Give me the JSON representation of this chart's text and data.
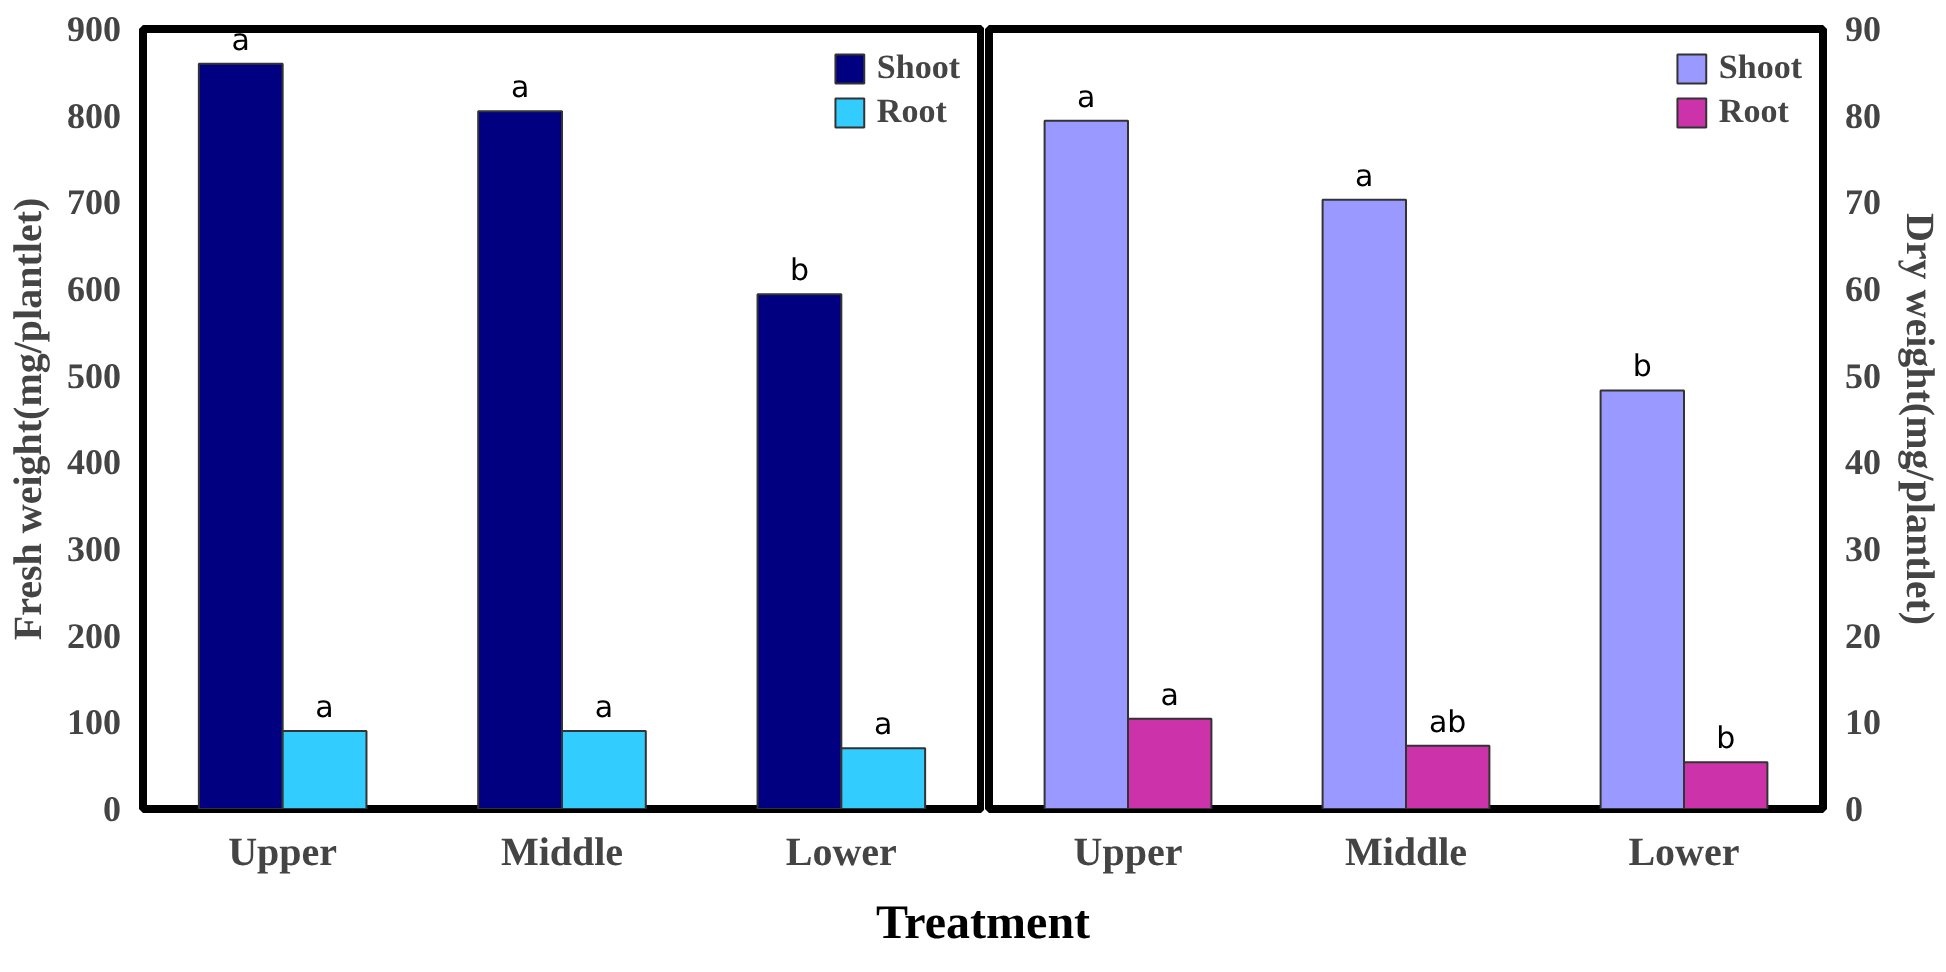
{
  "chart_data": [
    {
      "type": "bar",
      "categories": [
        "Upper",
        "Middle",
        "Lower"
      ],
      "xlabel": "Treatment",
      "ylabel": "Fresh weight(mg/plantlet)",
      "ylim": [
        0,
        900
      ],
      "yticks": [
        0,
        100,
        200,
        300,
        400,
        500,
        600,
        700,
        800,
        900
      ],
      "legend": "top right",
      "grid": false,
      "series": [
        {
          "name": "Shoot",
          "color": "#000080",
          "values": [
            860,
            805,
            594
          ]
        },
        {
          "name": "Root",
          "color": "#33ccff",
          "values": [
            90,
            90,
            70
          ]
        }
      ],
      "annotations": [
        {
          "text": "a",
          "x": "Upper",
          "y": 860
        },
        {
          "text": "a",
          "x": "Middle",
          "y": 805
        },
        {
          "text": "b",
          "x": "Lower",
          "y": 594
        },
        {
          "text": "a",
          "x": "Upper",
          "y": 90
        },
        {
          "text": "a",
          "x": "Middle",
          "y": 90
        },
        {
          "text": "a",
          "x": "Lower",
          "y": 70
        }
      ]
    },
    {
      "type": "bar",
      "categories": [
        "Upper",
        "Middle",
        "Lower"
      ],
      "ylabel": "Dry weight(mg/plantlet)",
      "ylim": [
        0,
        90
      ],
      "yticks": [
        0,
        10,
        20,
        30,
        40,
        50,
        60,
        70,
        80,
        90
      ],
      "legend": "top right",
      "grid": false,
      "series": [
        {
          "name": "Shoot",
          "color": "#9999ff",
          "values": [
            79.4,
            70.3,
            48.3
          ]
        },
        {
          "name": "Root",
          "color": "#cc33aa",
          "values": [
            10.4,
            7.3,
            5.4
          ]
        }
      ],
      "annotations": [
        {
          "text": "a",
          "x": "Upper",
          "y": 79.4
        },
        {
          "text": "a",
          "x": "Middle",
          "y": 70.3
        },
        {
          "text": "b",
          "x": "Lower",
          "y": 48.3
        },
        {
          "text": "a",
          "x": "Upper",
          "y": 10.4
        },
        {
          "text": "ab",
          "x": "Middle",
          "y": 7.3
        },
        {
          "text": "b",
          "x": "Lower",
          "y": 5.4
        }
      ]
    }
  ]
}
